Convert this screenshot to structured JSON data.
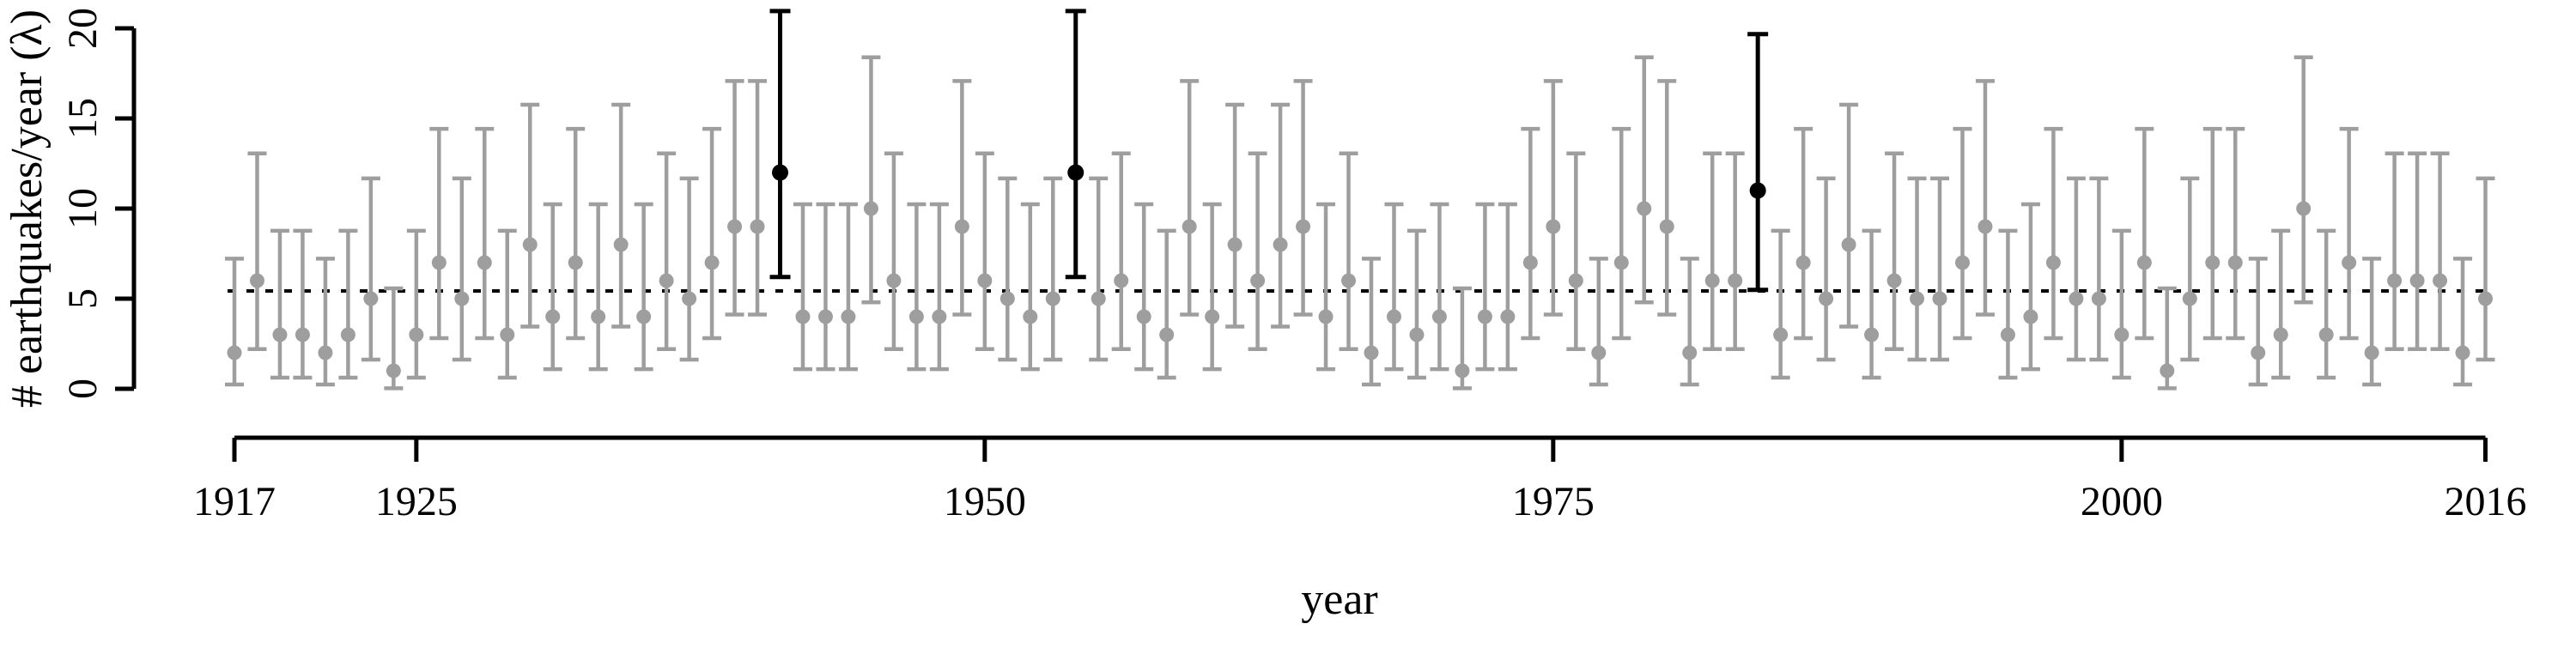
{
  "figure": {
    "background": "#ffffff",
    "axis_color": "#000000",
    "gray_point_color": "#9e9e9e",
    "highlight_point_color": "#000000",
    "dotted_line_color": "#000000"
  },
  "chart_data": {
    "type": "scatter",
    "title": "",
    "xlabel": "year",
    "ylabel": "# earthquakes/year (λ)",
    "xlim": [
      1917,
      2016
    ],
    "ylim": [
      0,
      20
    ],
    "x_ticks": [
      1917,
      1925,
      1950,
      1975,
      2000,
      2016
    ],
    "y_ticks": [
      0,
      5,
      10,
      15,
      20
    ],
    "grid": false,
    "legend_position": "none",
    "dotted_mean_line_value": 5.43,
    "years": [
      1917,
      1918,
      1919,
      1920,
      1921,
      1922,
      1923,
      1924,
      1925,
      1926,
      1927,
      1928,
      1929,
      1930,
      1931,
      1932,
      1933,
      1934,
      1935,
      1936,
      1937,
      1938,
      1939,
      1940,
      1941,
      1942,
      1943,
      1944,
      1945,
      1946,
      1947,
      1948,
      1949,
      1950,
      1951,
      1952,
      1953,
      1954,
      1955,
      1956,
      1957,
      1958,
      1959,
      1960,
      1961,
      1962,
      1963,
      1964,
      1965,
      1966,
      1967,
      1968,
      1969,
      1970,
      1971,
      1972,
      1973,
      1974,
      1975,
      1976,
      1977,
      1978,
      1979,
      1980,
      1981,
      1982,
      1983,
      1984,
      1985,
      1986,
      1987,
      1988,
      1989,
      1990,
      1991,
      1992,
      1993,
      1994,
      1995,
      1996,
      1997,
      1998,
      1999,
      2000,
      2001,
      2002,
      2003,
      2004,
      2005,
      2006,
      2007,
      2008,
      2009,
      2010,
      2011,
      2012,
      2013,
      2014,
      2015,
      2016
    ],
    "counts": [
      2,
      6,
      3,
      3,
      2,
      3,
      5,
      1,
      3,
      7,
      5,
      7,
      3,
      8,
      4,
      7,
      4,
      8,
      4,
      6,
      5,
      7,
      9,
      9,
      12,
      4,
      4,
      4,
      10,
      6,
      4,
      4,
      9,
      6,
      5,
      4,
      5,
      12,
      5,
      6,
      4,
      3,
      9,
      4,
      8,
      6,
      8,
      9,
      4,
      6,
      2,
      4,
      3,
      4,
      1,
      4,
      4,
      7,
      9,
      6,
      2,
      7,
      10,
      9,
      2,
      6,
      6,
      11,
      3,
      7,
      5,
      8,
      3,
      6,
      5,
      5,
      7,
      9,
      3,
      4,
      7,
      5,
      5,
      3,
      7,
      1,
      5,
      7,
      7,
      2,
      3,
      10,
      3,
      7,
      2,
      6,
      6,
      6,
      2,
      5
    ],
    "highlighted_years": [
      1941,
      1954,
      1984
    ],
    "error_bar_95ci_by_count": {
      "1": [
        0.03,
        5.57
      ],
      "2": [
        0.24,
        7.22
      ],
      "3": [
        0.62,
        8.77
      ],
      "4": [
        1.09,
        10.24
      ],
      "5": [
        1.62,
        11.67
      ],
      "6": [
        2.2,
        13.06
      ],
      "7": [
        2.81,
        14.42
      ],
      "8": [
        3.45,
        15.76
      ],
      "9": [
        4.12,
        17.08
      ],
      "10": [
        4.8,
        18.39
      ],
      "11": [
        5.49,
        19.68
      ],
      "12": [
        6.2,
        20.96
      ]
    }
  }
}
